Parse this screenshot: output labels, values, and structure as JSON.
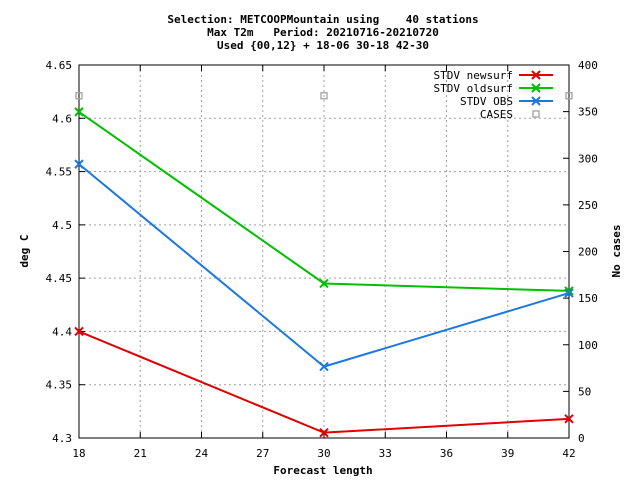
{
  "chart_data": {
    "type": "line",
    "title_lines": [
      "Selection: METCOOPMountain using    40 stations",
      "Max T2m   Period: 20210716-20210720",
      "Used {00,12} + 18-06 30-18 42-30"
    ],
    "xlabel": "Forecast length",
    "ylabel": "deg C",
    "y2label": "No cases",
    "xlim": [
      18,
      42
    ],
    "ylim": [
      4.3,
      4.65
    ],
    "y2lim": [
      0,
      400
    ],
    "x_ticks": [
      "18",
      "21",
      "24",
      "27",
      "30",
      "33",
      "36",
      "39",
      "42"
    ],
    "y_ticks": [
      "4.3",
      "4.35",
      "4.4",
      "4.45",
      "4.5",
      "4.55",
      "4.6",
      "4.65"
    ],
    "y2_ticks": [
      "0",
      "50",
      "100",
      "150",
      "200",
      "250",
      "300",
      "350",
      "400"
    ],
    "grid": true,
    "legend_position": "top-right",
    "series": [
      {
        "name": "STDV newsurf",
        "color": "#e00000",
        "marker": "x",
        "axis": "y",
        "x": [
          18,
          30,
          42
        ],
        "values": [
          4.4,
          4.305,
          4.318
        ]
      },
      {
        "name": "STDV oldsurf",
        "color": "#00c000",
        "marker": "x",
        "axis": "y",
        "x": [
          18,
          30,
          42
        ],
        "values": [
          4.606,
          4.445,
          4.438
        ]
      },
      {
        "name": "STDV OBS",
        "color": "#1b78e0",
        "marker": "x",
        "axis": "y",
        "x": [
          18,
          30,
          42
        ],
        "values": [
          4.557,
          4.367,
          4.436
        ]
      },
      {
        "name": "CASES",
        "color": "#a0a0a0",
        "marker": "square",
        "axis": "y2",
        "x": [
          18,
          30,
          42
        ],
        "values": [
          367,
          367,
          367
        ]
      }
    ]
  }
}
